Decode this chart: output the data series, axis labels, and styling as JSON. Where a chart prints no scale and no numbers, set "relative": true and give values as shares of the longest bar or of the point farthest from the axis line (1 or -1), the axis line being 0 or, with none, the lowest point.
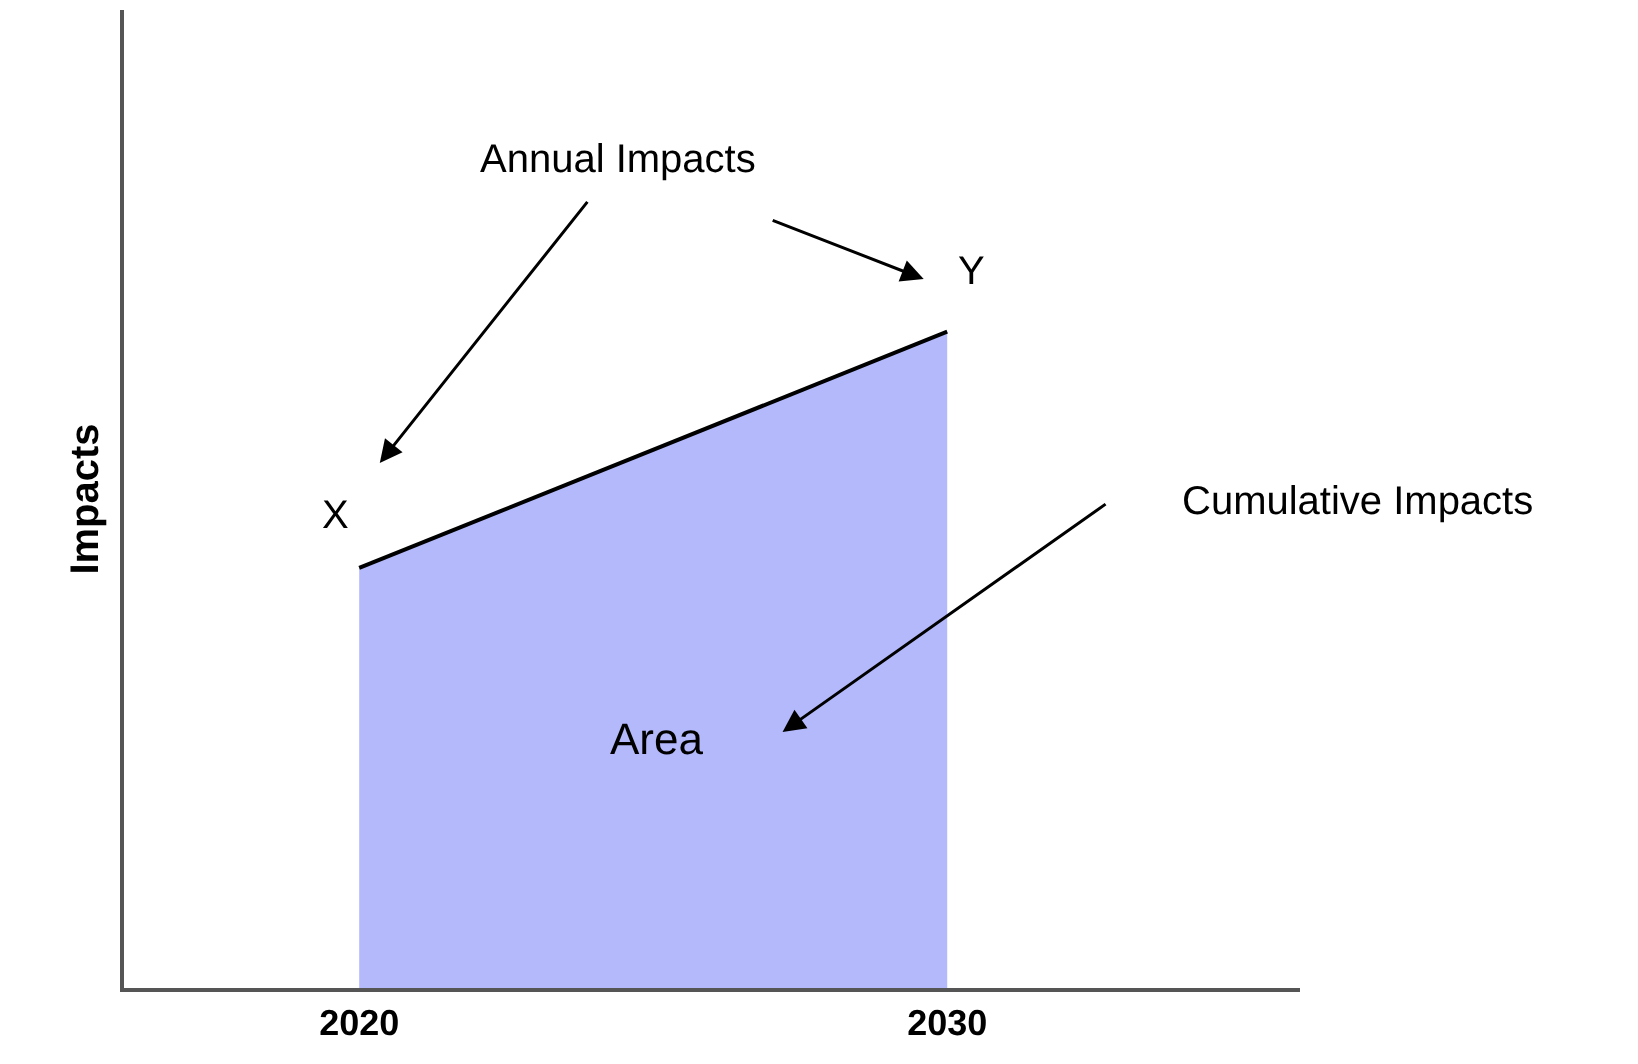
{
  "chart_data": {
    "type": "area",
    "relative": true,
    "ylabel": "Impacts",
    "x": [
      2020,
      2030
    ],
    "series": [
      {
        "color": "#b3b9fb",
        "values": [
          0.64,
          1
        ]
      }
    ],
    "xlim": [
      2016,
      2036
    ],
    "xticks": [
      2020,
      2030
    ],
    "annotations": [
      "Annual Impacts",
      "X",
      "Y",
      "Cumulative Impacts",
      "Area"
    ]
  }
}
